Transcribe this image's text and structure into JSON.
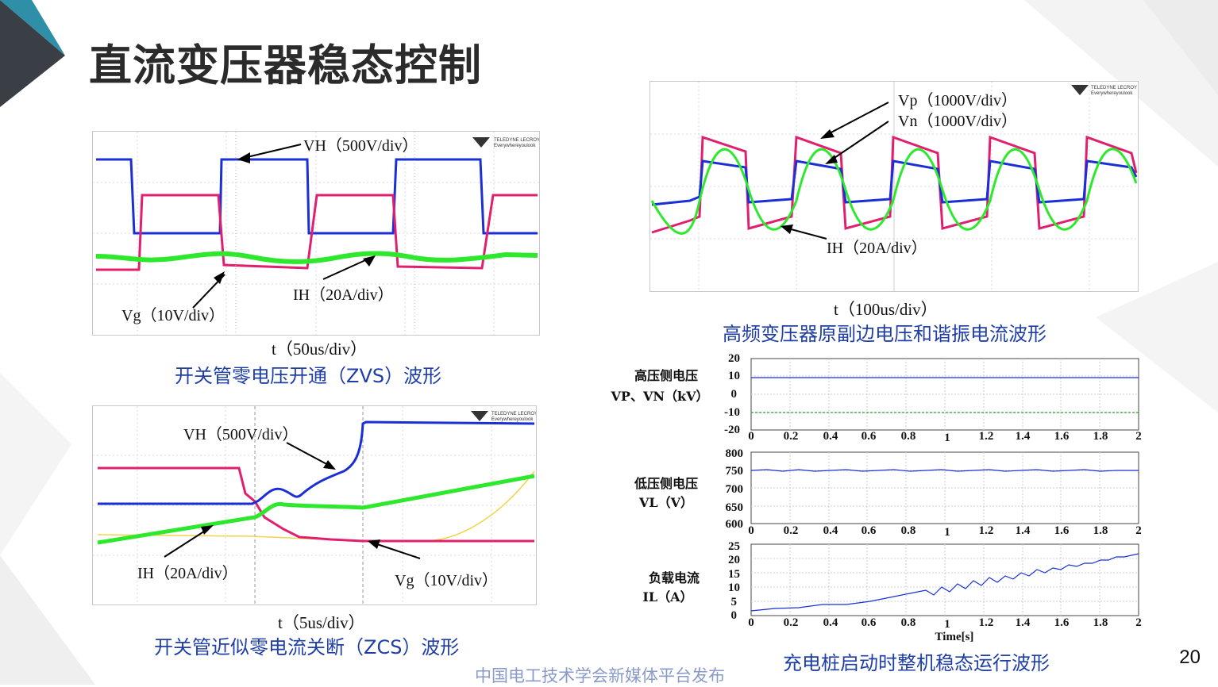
{
  "slide": {
    "title": "直流变压器稳态控制",
    "page_number": "20",
    "footer": "中国电工技术学会新媒体平台发布"
  },
  "scope_logo": {
    "line1": "TELEDYNE LECROY",
    "line2": "Everywhereyoulook"
  },
  "zvs_panel": {
    "vh_label": "VH（500V/div）",
    "ih_label": "IH（20A/div）",
    "vg_label": "Vg（10V/div）",
    "time_label": "t（50us/div）",
    "caption": "开关管零电压开通（ZVS）波形"
  },
  "hf_panel": {
    "vp_label": "Vp（1000V/div）",
    "vn_label": "Vn（1000V/div）",
    "ih_label": "IH（20A/div）",
    "time_label": "t（100us/div）",
    "caption": "高频变压器原副边电压和谐振电流波形"
  },
  "zcs_panel": {
    "vh_label": "VH（500V/div）",
    "ih_label": "IH（20A/div）",
    "vg_label": "Vg（10V/div）",
    "time_label": "t（5us/div）",
    "caption": "开关管近似零电流关断（ZCS）波形"
  },
  "sim_panel": {
    "caption": "充电桩启动时整机稳态运行波形",
    "x_axis_title": "Time[s]",
    "subplots": [
      {
        "label_line1": "高压侧电压",
        "label_line2": "VP、VN（kV）",
        "y_ticks": [
          "20",
          "10",
          "0",
          "-10",
          "-20"
        ]
      },
      {
        "label_line1": "低压侧电压",
        "label_line2": "VL（V）",
        "y_ticks": [
          "800",
          "750",
          "700",
          "650",
          "600"
        ]
      },
      {
        "label_line1": "负载电流",
        "label_line2": "IL（A）",
        "y_ticks": [
          "25",
          "20",
          "15",
          "10",
          "5",
          "0"
        ]
      }
    ],
    "x_ticks": [
      "0",
      "0.2",
      "0.4",
      "0.6",
      "0.8",
      "1",
      "1.2",
      "1.4",
      "1.6",
      "1.8",
      "2"
    ]
  },
  "colors": {
    "title": "#2b2b2b",
    "caption_blue": "#1f3fa6",
    "trace_blue": "#1a2fd6",
    "trace_pink": "#e0206e",
    "trace_green": "#2ee82e",
    "trace_yellow": "#f2d44a",
    "footer": "#8a9ac8"
  }
}
